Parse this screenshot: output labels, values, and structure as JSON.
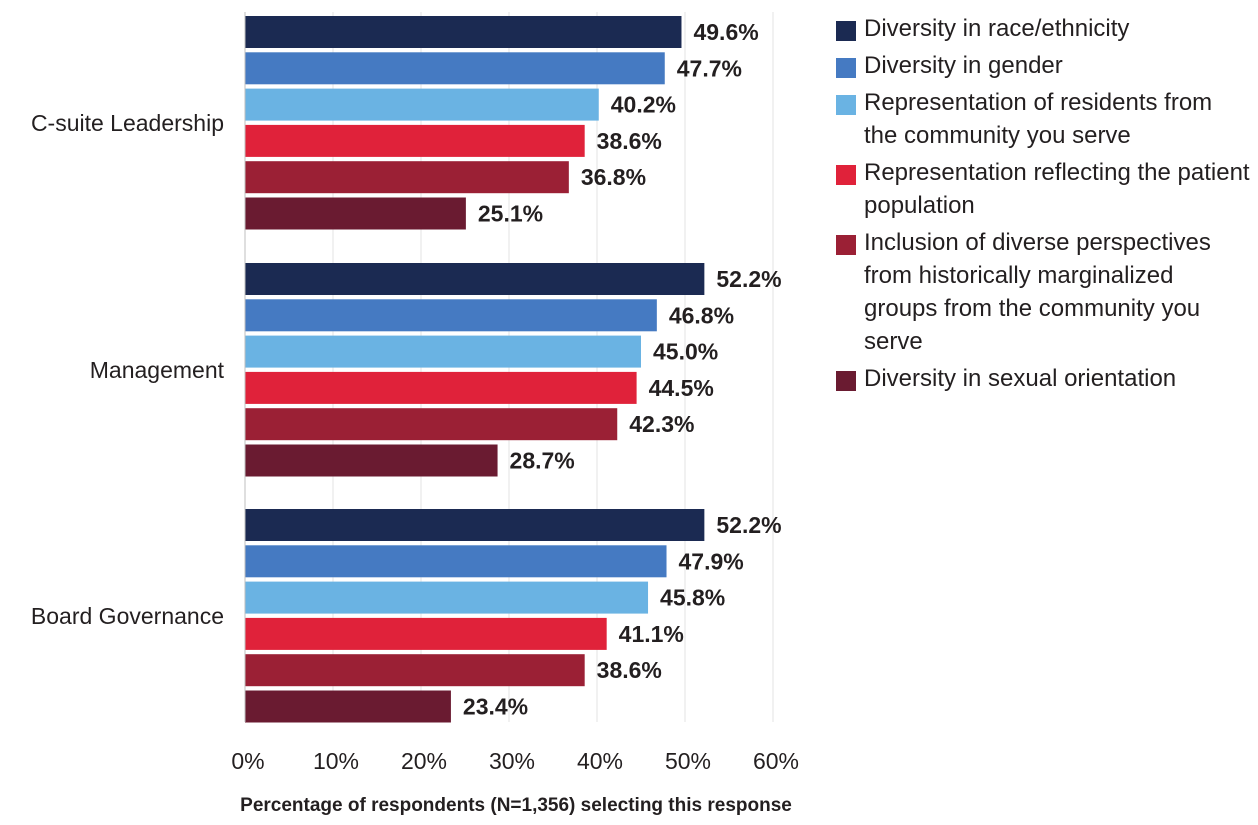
{
  "chart_data": {
    "type": "bar",
    "orientation": "horizontal",
    "categories": [
      "C-suite Leadership",
      "Management",
      "Board Governance"
    ],
    "series": [
      {
        "name": "Diversity in race/ethnicity",
        "color": "#1b2a52",
        "values": [
          49.6,
          52.2,
          52.2
        ],
        "labels": [
          "49.6%",
          "52.2%",
          "52.2%"
        ]
      },
      {
        "name": "Diversity in gender",
        "color": "#457ac2",
        "values": [
          47.7,
          46.8,
          47.9
        ],
        "labels": [
          "47.7%",
          "46.8%",
          "47.9%"
        ]
      },
      {
        "name": "Representation of residents from the community you serve",
        "color": "#6ab3e3",
        "values": [
          40.2,
          45.0,
          45.8
        ],
        "labels": [
          "40.2%",
          "45.0%",
          "45.8%"
        ]
      },
      {
        "name": "Representation reflecting the patient population",
        "color": "#e0223a",
        "values": [
          38.6,
          44.5,
          41.1
        ],
        "labels": [
          "38.6%",
          "44.5%",
          "41.1%"
        ]
      },
      {
        "name": "Inclusion of diverse perspectives from historically marginalized groups from the community you serve",
        "color": "#9b2035",
        "values": [
          36.8,
          42.3,
          38.6
        ],
        "labels": [
          "36.8%",
          "42.3%",
          "38.6%"
        ]
      },
      {
        "name": "Diversity in sexual orientation",
        "color": "#6a1b31",
        "values": [
          25.1,
          28.7,
          23.4
        ],
        "labels": [
          "25.1%",
          "28.7%",
          "23.4%"
        ]
      }
    ],
    "xlim": [
      0,
      60
    ],
    "xticks": [
      "0%",
      "10%",
      "20%",
      "30%",
      "40%",
      "50%",
      "60%"
    ],
    "xlabel": "Percentage of respondents (N=1,356) selecting this response",
    "grid": true,
    "legend_position": "right"
  }
}
